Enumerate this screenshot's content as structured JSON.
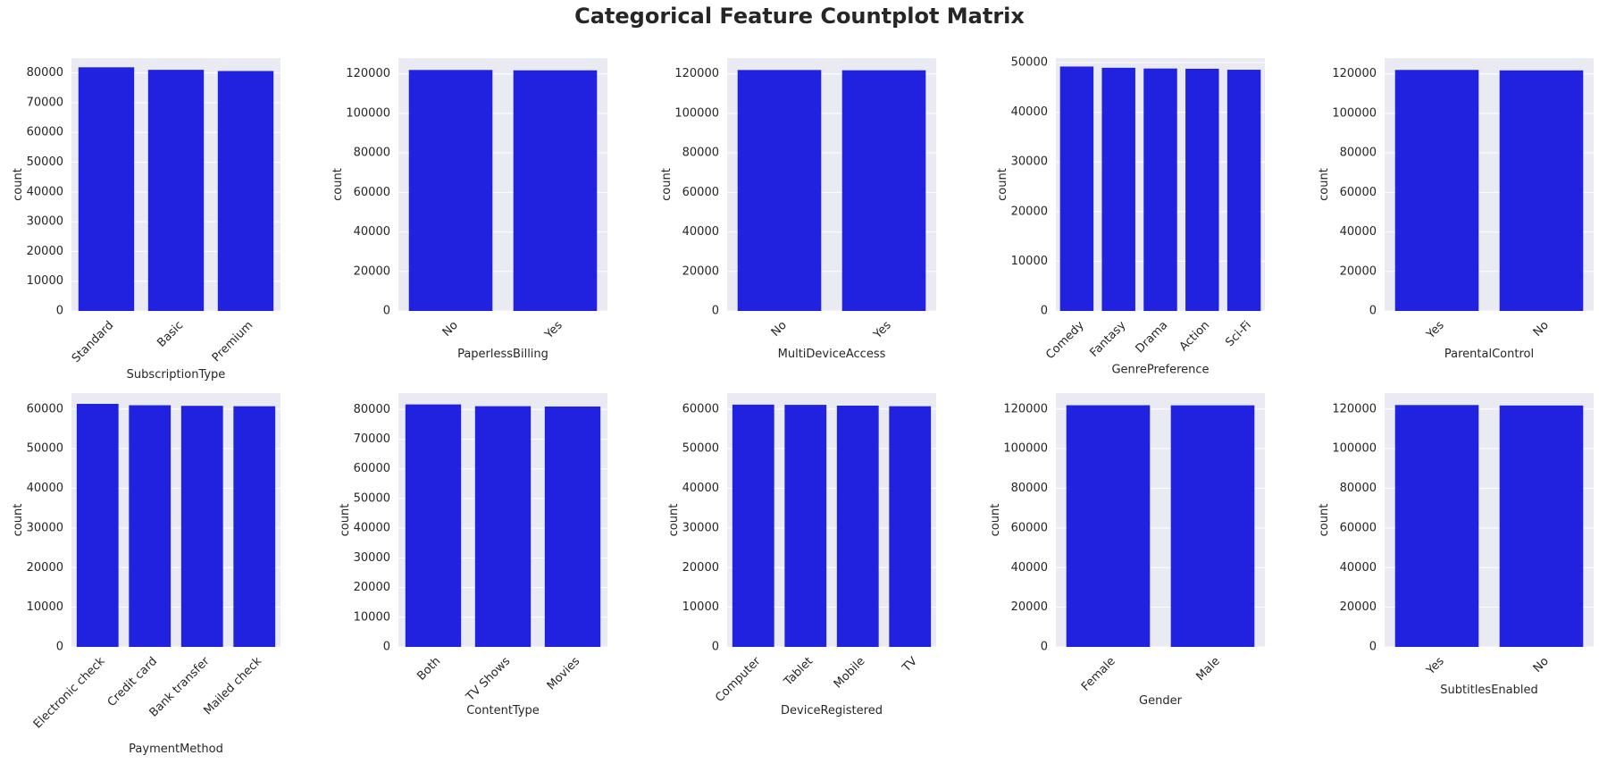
{
  "title": "Categorical Feature Countplot Matrix",
  "colors": {
    "bar": "#2121e0",
    "plot_bg": "#eaeaf2",
    "grid": "#ffffff",
    "text": "#262626"
  },
  "chart_data": [
    {
      "type": "bar",
      "xlabel": "SubscriptionType",
      "ylabel": "count",
      "categories": [
        "Standard",
        "Basic",
        "Premium"
      ],
      "values": [
        81900,
        81050,
        80650
      ],
      "ylim": [
        0,
        85000
      ],
      "yticks": [
        0,
        10000,
        20000,
        30000,
        40000,
        50000,
        60000,
        70000,
        80000
      ],
      "rotate_ticks": true,
      "grid": true
    },
    {
      "type": "bar",
      "xlabel": "PaperlessBilling",
      "ylabel": "count",
      "categories": [
        "No",
        "Yes"
      ],
      "values": [
        121980,
        121800
      ],
      "ylim": [
        0,
        128000
      ],
      "yticks": [
        0,
        20000,
        40000,
        60000,
        80000,
        100000,
        120000
      ],
      "rotate_ticks": true,
      "grid": true
    },
    {
      "type": "bar",
      "xlabel": "MultiDeviceAccess",
      "ylabel": "count",
      "categories": [
        "No",
        "Yes"
      ],
      "values": [
        121960,
        121820
      ],
      "ylim": [
        0,
        128000
      ],
      "yticks": [
        0,
        20000,
        40000,
        60000,
        80000,
        100000,
        120000
      ],
      "rotate_ticks": true,
      "grid": true
    },
    {
      "type": "bar",
      "xlabel": "GenrePreference",
      "ylabel": "count",
      "categories": [
        "Comedy",
        "Fantasy",
        "Drama",
        "Action",
        "Sci-Fi"
      ],
      "values": [
        49200,
        48950,
        48800,
        48750,
        48550
      ],
      "ylim": [
        0,
        50900
      ],
      "yticks": [
        0,
        10000,
        20000,
        30000,
        40000,
        50000
      ],
      "rotate_ticks": true,
      "grid": true
    },
    {
      "type": "bar",
      "xlabel": "ParentalControl",
      "ylabel": "count",
      "categories": [
        "Yes",
        "No"
      ],
      "values": [
        122000,
        121780
      ],
      "ylim": [
        0,
        128000
      ],
      "yticks": [
        0,
        20000,
        40000,
        60000,
        80000,
        100000,
        120000
      ],
      "rotate_ticks": true,
      "grid": true
    },
    {
      "type": "bar",
      "xlabel": "PaymentMethod",
      "ylabel": "count",
      "categories": [
        "Electronic check",
        "Credit card",
        "Bank transfer",
        "Mailed check"
      ],
      "values": [
        61300,
        60950,
        60800,
        60700
      ],
      "ylim": [
        0,
        64000
      ],
      "yticks": [
        0,
        10000,
        20000,
        30000,
        40000,
        50000,
        60000
      ],
      "rotate_ticks": true,
      "grid": true
    },
    {
      "type": "bar",
      "xlabel": "ContentType",
      "ylabel": "count",
      "categories": [
        "Both",
        "TV Shows",
        "Movies"
      ],
      "values": [
        81700,
        81100,
        81000
      ],
      "ylim": [
        0,
        85500
      ],
      "yticks": [
        0,
        10000,
        20000,
        30000,
        40000,
        50000,
        60000,
        70000,
        80000
      ],
      "rotate_ticks": true,
      "grid": true
    },
    {
      "type": "bar",
      "xlabel": "DeviceRegistered",
      "ylabel": "count",
      "categories": [
        "Computer",
        "Tablet",
        "Mobile",
        "TV"
      ],
      "values": [
        61100,
        61050,
        60850,
        60700
      ],
      "ylim": [
        0,
        64000
      ],
      "yticks": [
        0,
        10000,
        20000,
        30000,
        40000,
        50000,
        60000
      ],
      "rotate_ticks": true,
      "grid": true
    },
    {
      "type": "bar",
      "xlabel": "Gender",
      "ylabel": "count",
      "categories": [
        "Female",
        "Male"
      ],
      "values": [
        121900,
        121850
      ],
      "ylim": [
        0,
        128000
      ],
      "yticks": [
        0,
        20000,
        40000,
        60000,
        80000,
        100000,
        120000
      ],
      "rotate_ticks": true,
      "grid": true
    },
    {
      "type": "bar",
      "xlabel": "SubtitlesEnabled",
      "ylabel": "count",
      "categories": [
        "Yes",
        "No"
      ],
      "values": [
        122000,
        121780
      ],
      "ylim": [
        0,
        128000
      ],
      "yticks": [
        0,
        20000,
        40000,
        60000,
        80000,
        100000,
        120000
      ],
      "rotate_ticks": true,
      "grid": true
    }
  ]
}
